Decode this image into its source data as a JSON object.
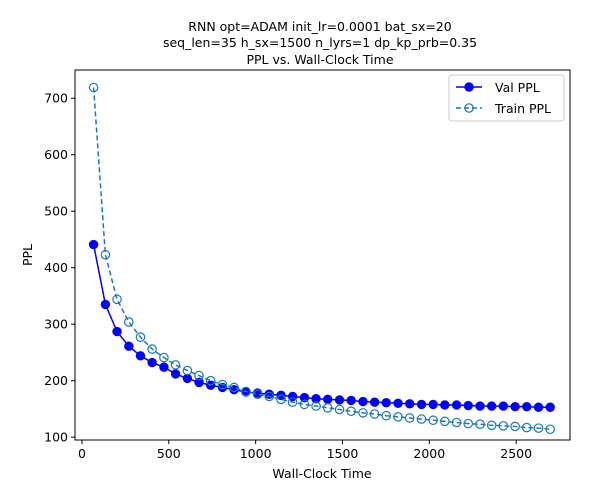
{
  "chart_data": {
    "type": "line",
    "title_lines": [
      "RNN opt=ADAM init_lr=0.0001 bat_sx=20",
      "seq_len=35 h_sx=1500 n_lyrs=1 dp_kp_prb=0.35",
      "PPL vs. Wall-Clock Time"
    ],
    "xlabel": "Wall-Clock Time",
    "ylabel": "PPL",
    "xlim": [
      -40,
      2810
    ],
    "ylim": [
      95,
      750
    ],
    "xticks": [
      0,
      500,
      1000,
      1500,
      2000,
      2500
    ],
    "yticks": [
      100,
      200,
      300,
      400,
      500,
      600,
      700
    ],
    "grid": false,
    "legend_position": "top-right",
    "series": [
      {
        "name": "Val PPL",
        "color": "#0000ff",
        "line_style": "solid",
        "marker": "filled-circle",
        "x": [
          67,
          135,
          202,
          270,
          337,
          404,
          472,
          539,
          607,
          674,
          741,
          809,
          876,
          944,
          1011,
          1078,
          1146,
          1213,
          1281,
          1348,
          1415,
          1483,
          1550,
          1618,
          1685,
          1752,
          1820,
          1887,
          1955,
          2022,
          2089,
          2157,
          2224,
          2292,
          2359,
          2426,
          2494,
          2561,
          2629,
          2696
        ],
        "y": [
          441,
          335,
          287,
          261,
          244,
          232,
          224,
          212,
          204,
          197,
          192,
          188,
          184,
          180,
          178,
          176,
          174,
          172,
          170,
          168,
          167,
          166,
          165,
          163,
          162,
          161,
          160,
          159,
          158,
          158,
          157,
          157,
          156,
          155,
          155,
          155,
          154,
          154,
          153,
          153
        ]
      },
      {
        "name": "Train PPL",
        "color": "#1f77b4",
        "line_style": "dashed",
        "marker": "hollow-circle",
        "x": [
          67,
          135,
          202,
          270,
          337,
          404,
          472,
          539,
          607,
          674,
          741,
          809,
          876,
          944,
          1011,
          1078,
          1146,
          1213,
          1281,
          1348,
          1415,
          1483,
          1550,
          1618,
          1685,
          1752,
          1820,
          1887,
          1955,
          2022,
          2089,
          2157,
          2224,
          2292,
          2359,
          2426,
          2494,
          2561,
          2629,
          2696
        ],
        "y": [
          719,
          423,
          344,
          304,
          277,
          256,
          241,
          228,
          218,
          209,
          200,
          193,
          188,
          181,
          176,
          172,
          167,
          162,
          158,
          155,
          152,
          149,
          146,
          143,
          141,
          138,
          136,
          134,
          132,
          130,
          128,
          126,
          124,
          123,
          121,
          120,
          119,
          117,
          116,
          114
        ]
      }
    ]
  }
}
